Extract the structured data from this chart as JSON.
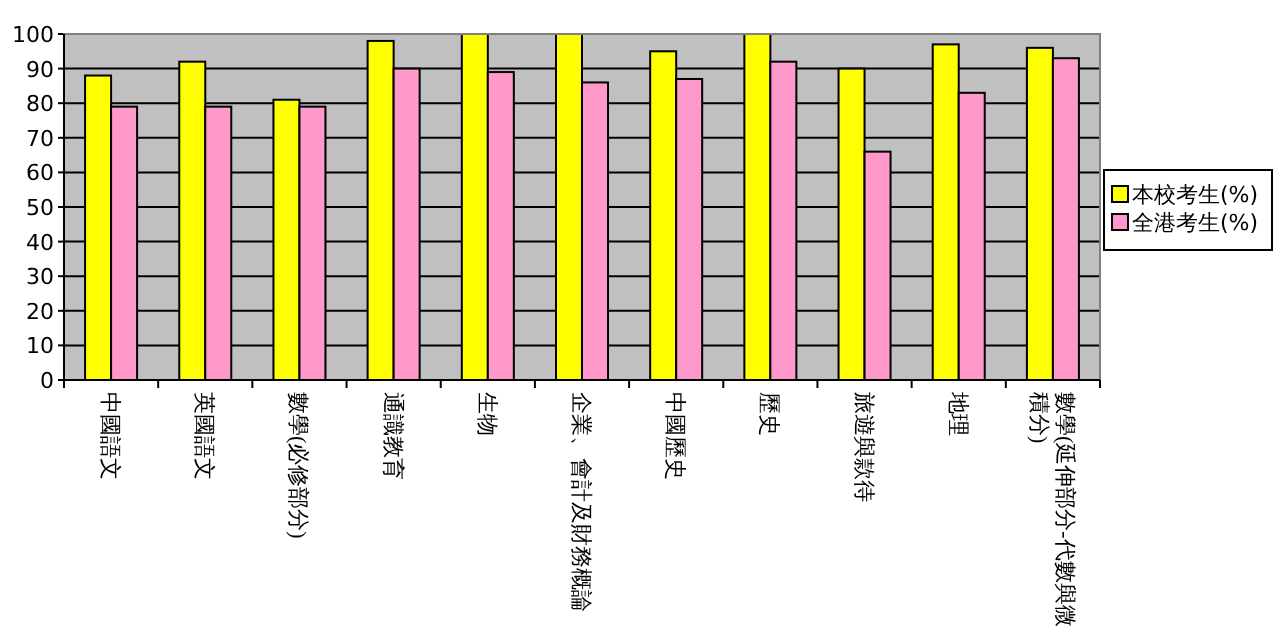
{
  "chart_data": {
    "type": "bar",
    "categories": [
      "中國語文",
      "英國語文",
      "數學(必修部分)",
      "通識教育",
      "生物",
      "企業、會計及財務概論",
      "中國歷史",
      "歷史",
      "旅遊與款待",
      "地理",
      "數學(延伸部分-代數與微積分)"
    ],
    "series": [
      {
        "name": "本校考生(%)",
        "color": "#ffff00",
        "values": [
          88,
          92,
          81,
          98,
          100,
          100,
          95,
          100,
          90,
          97,
          96
        ]
      },
      {
        "name": "全港考生(%)",
        "color": "#ff99cc",
        "values": [
          79,
          79,
          79,
          90,
          89,
          86,
          87,
          92,
          66,
          83,
          93
        ]
      }
    ],
    "ylim": [
      0,
      100
    ],
    "yticks": [
      0,
      10,
      20,
      30,
      40,
      50,
      60,
      70,
      80,
      90,
      100
    ],
    "grid": "y",
    "legend": "right"
  }
}
